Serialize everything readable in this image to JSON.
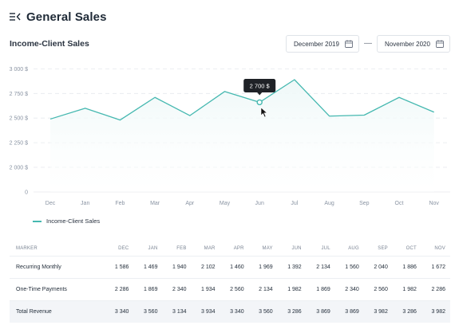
{
  "page": {
    "title": "General Sales"
  },
  "section": {
    "title": "Income-Client Sales"
  },
  "date_range": {
    "from": "December 2019",
    "separator": "—",
    "to": "November 2020"
  },
  "colors": {
    "accent": "#45b8b0",
    "area_fill": "#eef8f8",
    "text": "#1f2a37",
    "muted": "#8a94a3"
  },
  "chart_data": {
    "type": "area",
    "categories": [
      "Dec",
      "Jan",
      "Feb",
      "Mar",
      "Apr",
      "May",
      "Jun",
      "Jul",
      "Aug",
      "Sep",
      "Oct",
      "Nov"
    ],
    "series": [
      {
        "name": "Income-Client Sales",
        "values": [
          2490,
          2600,
          2480,
          2710,
          2525,
          2770,
          2660,
          2890,
          2520,
          2530,
          2710,
          2560
        ]
      }
    ],
    "y_ticks": [
      "0",
      "2 000 $",
      "2 250 $",
      "2 500 $",
      "2 750 $",
      "3 000 $"
    ],
    "y_tick_values": [
      0,
      2000,
      2250,
      2500,
      2750,
      3000
    ],
    "tooltip": {
      "category": "Jun",
      "label": "2 700 $"
    },
    "grid": true,
    "legend_position": "bottom-left"
  },
  "table": {
    "columns": [
      "MARKER",
      "DEC",
      "JAN",
      "FEB",
      "MAR",
      "APR",
      "MAY",
      "JUN",
      "JUL",
      "AUG",
      "SEP",
      "OCT",
      "NOV"
    ],
    "rows": [
      {
        "label": "Recurring Monthly",
        "values": [
          "1 586",
          "1 469",
          "1 940",
          "2 102",
          "1 460",
          "1 969",
          "1 392",
          "2 134",
          "1 560",
          "2 040",
          "1 886",
          "1 672"
        ]
      },
      {
        "label": "One-Time Payments",
        "values": [
          "2 286",
          "1 869",
          "2 340",
          "1 934",
          "2 560",
          "2 134",
          "1 982",
          "1 869",
          "2 340",
          "2 560",
          "1 982",
          "2 286"
        ]
      },
      {
        "label": "Total Revenue",
        "values": [
          "3 340",
          "3 560",
          "3 134",
          "3 934",
          "3 340",
          "3 560",
          "3 286",
          "3 869",
          "3 869",
          "3 982",
          "3 286",
          "3 982"
        ]
      }
    ]
  }
}
